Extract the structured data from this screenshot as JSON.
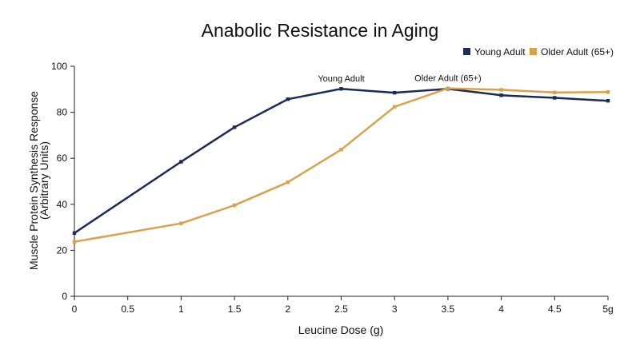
{
  "chart_data": {
    "type": "line",
    "title": "Anabolic Resistance in Aging",
    "xlabel": "Leucine Dose (g)",
    "ylabel": [
      "Muscle Protein Synthesis Response",
      "(Arbitrary Units)"
    ],
    "x": [
      0,
      0.5,
      1,
      1.5,
      2,
      2.5,
      3,
      3.5,
      4,
      4.5,
      5
    ],
    "x_tick_labels": [
      "0",
      "0.5",
      "1",
      "1.5",
      "2",
      "2.5",
      "3",
      "3.5",
      "4",
      "4.5",
      "5g"
    ],
    "xlim": [
      0,
      5
    ],
    "ylim": [
      0,
      100
    ],
    "y_ticks": [
      0,
      20,
      40,
      60,
      80,
      100
    ],
    "grid": false,
    "legend_position": "top-right",
    "series": [
      {
        "name": "Young Adult",
        "color": "#1b2a56",
        "points": [
          [
            0,
            27.5
          ],
          [
            1,
            58.5
          ],
          [
            1.5,
            73.5
          ],
          [
            2,
            85.7
          ],
          [
            2.5,
            90.2
          ],
          [
            3,
            88.5
          ],
          [
            3.5,
            90.2
          ],
          [
            4,
            87.4
          ],
          [
            4.5,
            86.3
          ],
          [
            5,
            85
          ]
        ]
      },
      {
        "name": "Older Adult (65+)",
        "color": "#d9a24a",
        "points": [
          [
            0,
            23.7
          ],
          [
            1,
            31.7
          ],
          [
            1.5,
            39.6
          ],
          [
            2,
            49.6
          ],
          [
            2.5,
            63.8
          ],
          [
            3,
            82.4
          ],
          [
            3.5,
            90.4
          ],
          [
            4,
            89.8
          ],
          [
            4.5,
            88.6
          ],
          [
            5,
            88.8
          ]
        ]
      }
    ],
    "annotations": [
      {
        "text": "Young Adult",
        "x": 2.5,
        "y": 90.2
      },
      {
        "text": "Older Adult (65+)",
        "x": 3.5,
        "y": 90.4
      }
    ]
  }
}
